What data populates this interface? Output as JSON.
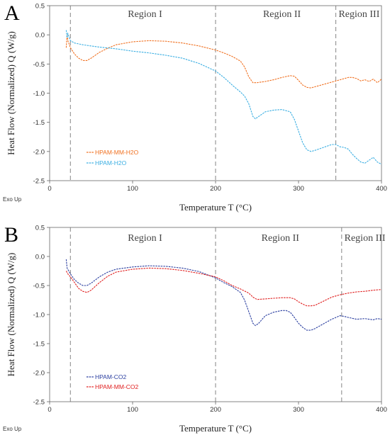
{
  "chart_data": [
    {
      "type": "line",
      "panel_label": "A",
      "xlabel": "Temperature T (°C)",
      "ylabel": "Heat Flow (Normalized) Q (W/g)",
      "xlim": [
        0,
        400
      ],
      "ylim": [
        -2.5,
        0.5
      ],
      "x_ticks": [
        0,
        100,
        200,
        300,
        400
      ],
      "y_ticks": [
        0.5,
        0.0,
        -0.5,
        -1.0,
        -1.5,
        -2.0,
        -2.5
      ],
      "corner_note": "Exo Up",
      "grid": false,
      "legend_position": "lower-left",
      "regions": [
        {
          "label": "Region I",
          "x_center": 115
        },
        {
          "label": "Region II",
          "x_center": 280
        },
        {
          "label": "Region III",
          "x_center": 373
        }
      ],
      "boundaries": [
        25,
        200,
        345
      ],
      "series": [
        {
          "name": "HPAM-MM-H2O",
          "color": "#f07020",
          "points": [
            [
              20,
              -0.22
            ],
            [
              21,
              0.0
            ],
            [
              22,
              -0.1
            ],
            [
              25,
              -0.22
            ],
            [
              30,
              -0.33
            ],
            [
              35,
              -0.4
            ],
            [
              40,
              -0.44
            ],
            [
              45,
              -0.44
            ],
            [
              50,
              -0.4
            ],
            [
              60,
              -0.3
            ],
            [
              70,
              -0.23
            ],
            [
              80,
              -0.17
            ],
            [
              100,
              -0.12
            ],
            [
              120,
              -0.1
            ],
            [
              140,
              -0.11
            ],
            [
              160,
              -0.14
            ],
            [
              180,
              -0.19
            ],
            [
              200,
              -0.26
            ],
            [
              210,
              -0.31
            ],
            [
              220,
              -0.37
            ],
            [
              230,
              -0.45
            ],
            [
              235,
              -0.55
            ],
            [
              240,
              -0.72
            ],
            [
              245,
              -0.82
            ],
            [
              250,
              -0.82
            ],
            [
              260,
              -0.8
            ],
            [
              270,
              -0.77
            ],
            [
              280,
              -0.73
            ],
            [
              290,
              -0.7
            ],
            [
              295,
              -0.71
            ],
            [
              300,
              -0.78
            ],
            [
              305,
              -0.86
            ],
            [
              310,
              -0.9
            ],
            [
              315,
              -0.91
            ],
            [
              320,
              -0.89
            ],
            [
              330,
              -0.85
            ],
            [
              340,
              -0.81
            ],
            [
              350,
              -0.77
            ],
            [
              360,
              -0.73
            ],
            [
              365,
              -0.73
            ],
            [
              370,
              -0.75
            ],
            [
              375,
              -0.79
            ],
            [
              380,
              -0.77
            ],
            [
              385,
              -0.8
            ],
            [
              390,
              -0.76
            ],
            [
              395,
              -0.82
            ],
            [
              400,
              -0.76
            ]
          ]
        },
        {
          "name": "HPAM-H2O",
          "color": "#3aaee2",
          "points": [
            [
              20,
              0.08
            ],
            [
              21,
              -0.05
            ],
            [
              22,
              0.02
            ],
            [
              25,
              -0.1
            ],
            [
              30,
              -0.14
            ],
            [
              40,
              -0.17
            ],
            [
              60,
              -0.21
            ],
            [
              80,
              -0.24
            ],
            [
              100,
              -0.28
            ],
            [
              120,
              -0.31
            ],
            [
              140,
              -0.35
            ],
            [
              160,
              -0.4
            ],
            [
              180,
              -0.49
            ],
            [
              200,
              -0.62
            ],
            [
              210,
              -0.73
            ],
            [
              220,
              -0.86
            ],
            [
              230,
              -0.98
            ],
            [
              235,
              -1.05
            ],
            [
              240,
              -1.18
            ],
            [
              245,
              -1.4
            ],
            [
              248,
              -1.44
            ],
            [
              252,
              -1.4
            ],
            [
              260,
              -1.32
            ],
            [
              270,
              -1.29
            ],
            [
              280,
              -1.28
            ],
            [
              290,
              -1.32
            ],
            [
              295,
              -1.45
            ],
            [
              300,
              -1.65
            ],
            [
              305,
              -1.85
            ],
            [
              310,
              -1.97
            ],
            [
              315,
              -2.0
            ],
            [
              320,
              -1.98
            ],
            [
              330,
              -1.93
            ],
            [
              340,
              -1.88
            ],
            [
              345,
              -1.88
            ],
            [
              350,
              -1.92
            ],
            [
              355,
              -1.93
            ],
            [
              360,
              -1.96
            ],
            [
              365,
              -2.05
            ],
            [
              370,
              -2.12
            ],
            [
              375,
              -2.18
            ],
            [
              380,
              -2.2
            ],
            [
              385,
              -2.15
            ],
            [
              390,
              -2.1
            ],
            [
              395,
              -2.18
            ],
            [
              400,
              -2.22
            ]
          ]
        }
      ]
    },
    {
      "type": "line",
      "panel_label": "B",
      "xlabel": "Temperature T (°C)",
      "ylabel": "Heat Flow (Normalized) Q (W/g)",
      "xlim": [
        0,
        400
      ],
      "ylim": [
        -2.5,
        0.5
      ],
      "x_ticks": [
        0,
        100,
        200,
        300,
        400
      ],
      "y_ticks": [
        0.5,
        0.0,
        -0.5,
        -1.0,
        -1.5,
        -2.0,
        -2.5
      ],
      "corner_note": "Exo Up",
      "grid": false,
      "legend_position": "lower-left",
      "regions": [
        {
          "label": "Region I",
          "x_center": 115
        },
        {
          "label": "Region II",
          "x_center": 278
        },
        {
          "label": "Region III",
          "x_center": 380
        }
      ],
      "boundaries": [
        25,
        200,
        352
      ],
      "series": [
        {
          "name": "HPAM-CO2",
          "color": "#2b3fa0",
          "points": [
            [
              20,
              -0.05
            ],
            [
              21,
              -0.2
            ],
            [
              25,
              -0.3
            ],
            [
              30,
              -0.4
            ],
            [
              35,
              -0.46
            ],
            [
              40,
              -0.5
            ],
            [
              45,
              -0.5
            ],
            [
              50,
              -0.46
            ],
            [
              60,
              -0.35
            ],
            [
              70,
              -0.27
            ],
            [
              80,
              -0.22
            ],
            [
              100,
              -0.18
            ],
            [
              120,
              -0.16
            ],
            [
              140,
              -0.17
            ],
            [
              160,
              -0.2
            ],
            [
              180,
              -0.26
            ],
            [
              200,
              -0.37
            ],
            [
              210,
              -0.45
            ],
            [
              220,
              -0.52
            ],
            [
              230,
              -0.62
            ],
            [
              235,
              -0.75
            ],
            [
              240,
              -0.95
            ],
            [
              245,
              -1.15
            ],
            [
              248,
              -1.19
            ],
            [
              252,
              -1.15
            ],
            [
              260,
              -1.02
            ],
            [
              270,
              -0.96
            ],
            [
              280,
              -0.93
            ],
            [
              285,
              -0.93
            ],
            [
              290,
              -0.96
            ],
            [
              295,
              -1.05
            ],
            [
              300,
              -1.15
            ],
            [
              305,
              -1.22
            ],
            [
              310,
              -1.27
            ],
            [
              315,
              -1.27
            ],
            [
              320,
              -1.24
            ],
            [
              330,
              -1.16
            ],
            [
              340,
              -1.08
            ],
            [
              345,
              -1.05
            ],
            [
              350,
              -1.02
            ],
            [
              355,
              -1.03
            ],
            [
              360,
              -1.05
            ],
            [
              370,
              -1.08
            ],
            [
              380,
              -1.07
            ],
            [
              390,
              -1.09
            ],
            [
              395,
              -1.07
            ],
            [
              400,
              -1.08
            ]
          ]
        },
        {
          "name": "HPAM-MM-CO2",
          "color": "#e02020",
          "points": [
            [
              20,
              -0.25
            ],
            [
              22,
              -0.3
            ],
            [
              25,
              -0.35
            ],
            [
              30,
              -0.45
            ],
            [
              35,
              -0.55
            ],
            [
              40,
              -0.6
            ],
            [
              45,
              -0.62
            ],
            [
              50,
              -0.58
            ],
            [
              60,
              -0.45
            ],
            [
              70,
              -0.34
            ],
            [
              80,
              -0.27
            ],
            [
              100,
              -0.22
            ],
            [
              120,
              -0.2
            ],
            [
              140,
              -0.21
            ],
            [
              160,
              -0.24
            ],
            [
              180,
              -0.29
            ],
            [
              200,
              -0.35
            ],
            [
              210,
              -0.42
            ],
            [
              220,
              -0.5
            ],
            [
              230,
              -0.56
            ],
            [
              240,
              -0.63
            ],
            [
              245,
              -0.7
            ],
            [
              250,
              -0.74
            ],
            [
              260,
              -0.73
            ],
            [
              270,
              -0.72
            ],
            [
              280,
              -0.71
            ],
            [
              290,
              -0.71
            ],
            [
              295,
              -0.73
            ],
            [
              300,
              -0.78
            ],
            [
              305,
              -0.82
            ],
            [
              310,
              -0.85
            ],
            [
              315,
              -0.85
            ],
            [
              320,
              -0.84
            ],
            [
              330,
              -0.77
            ],
            [
              340,
              -0.7
            ],
            [
              350,
              -0.66
            ],
            [
              360,
              -0.63
            ],
            [
              370,
              -0.61
            ],
            [
              380,
              -0.6
            ],
            [
              390,
              -0.58
            ],
            [
              400,
              -0.57
            ]
          ]
        }
      ]
    }
  ]
}
